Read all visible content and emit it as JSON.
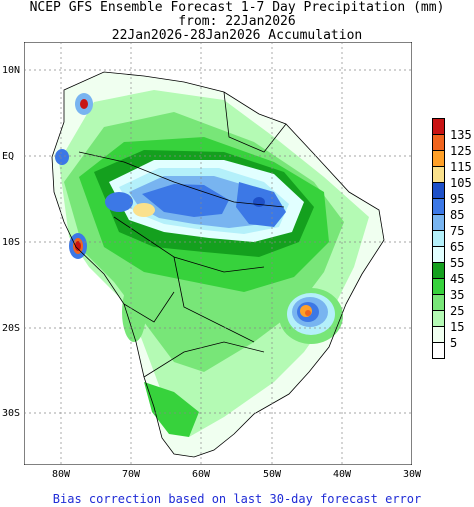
{
  "header": {
    "line1": "NCEP GFS Ensemble Forecast 1-7 Day Precipitation (mm)",
    "line2": "from: 22Jan2026",
    "line3": "22Jan2026-28Jan2026 Accumulation"
  },
  "axes": {
    "y_ticks": [
      "10N",
      "EQ",
      "10S",
      "20S",
      "30S"
    ],
    "x_ticks": [
      "80W",
      "70W",
      "60W",
      "50W",
      "40W",
      "30W"
    ]
  },
  "legend": {
    "levels": [
      {
        "label": "135",
        "color": "#c81414"
      },
      {
        "label": "125",
        "color": "#f0641e"
      },
      {
        "label": "115",
        "color": "#ffa028"
      },
      {
        "label": "105",
        "color": "#fae18c"
      },
      {
        "label": "95",
        "color": "#1e50c8"
      },
      {
        "label": "85",
        "color": "#3c78e6"
      },
      {
        "label": "75",
        "color": "#78b4f0"
      },
      {
        "label": "65",
        "color": "#b4f0fa"
      },
      {
        "label": "55",
        "color": "#e1ffff"
      },
      {
        "label": "45",
        "color": "#14a01e"
      },
      {
        "label": "35",
        "color": "#37d23c"
      },
      {
        "label": "25",
        "color": "#78e678"
      },
      {
        "label": "15",
        "color": "#b4fab4"
      },
      {
        "label": "5",
        "color": "#f0fff0"
      }
    ],
    "empty_box_color": "#ffffff"
  },
  "footer": {
    "text": "Bias correction based on last 30-day forecast error"
  }
}
